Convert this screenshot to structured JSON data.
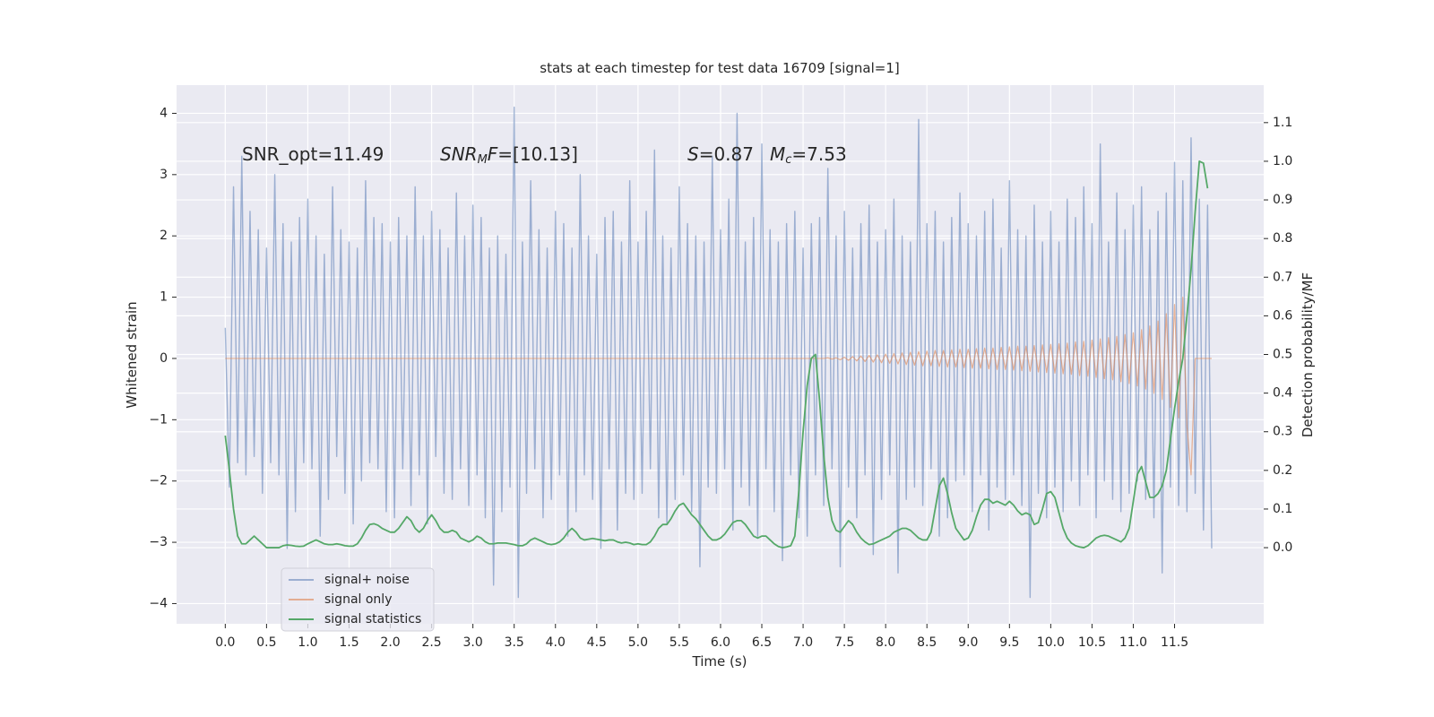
{
  "chart_data": {
    "type": "line",
    "title": "stats at each timestep for test data 16709 [signal=1]",
    "x_label": "Time (s)",
    "y_label": "Whitened strain",
    "y2_label": "Detection probability/MF",
    "annotations": [
      [
        "SNR_opt=11.49"
      ],
      [
        "SNR",
        "M",
        "F",
        "=[10.13]"
      ],
      [
        "S",
        "=0.87"
      ],
      [
        "M",
        "c",
        "=7.53"
      ]
    ],
    "xlim": [
      -0.59,
      12.58
    ],
    "ylim": [
      -4.33,
      4.46
    ],
    "y2lim": [
      -0.197,
      1.197
    ],
    "xticks": [
      {
        "value": 0,
        "label": "0.0"
      },
      0.5,
      {
        "value": 1,
        "label": "1.0"
      },
      1.5,
      {
        "value": 2,
        "label": "2.0"
      },
      2.5,
      {
        "value": 3,
        "label": "3.0"
      },
      3.5,
      {
        "value": 4,
        "label": "4.0"
      },
      4.5,
      {
        "value": 5,
        "label": "5.0"
      },
      5.5,
      {
        "value": 6,
        "label": "6.0"
      },
      6.5,
      {
        "value": 7,
        "label": "7.0"
      },
      7.5,
      {
        "value": 8,
        "label": "8.0"
      },
      8.5,
      {
        "value": 9,
        "label": "9.0"
      },
      9.5,
      {
        "value": 10,
        "label": "10.0"
      },
      10.5,
      {
        "value": 11,
        "label": "11.0"
      },
      11.5
    ],
    "yticks": [
      {
        "value": -4,
        "label": "−4"
      },
      {
        "value": -3,
        "label": "−3"
      },
      {
        "value": -2,
        "label": "−2"
      },
      {
        "value": -1,
        "label": "−1"
      },
      0,
      1,
      2,
      3,
      4
    ],
    "y2ticks": [
      {
        "value": 0,
        "label": "0.0"
      },
      0.1,
      0.2,
      0.3,
      0.4,
      0.5,
      0.6,
      0.7,
      0.8,
      0.9,
      {
        "value": 1,
        "label": "1.0"
      },
      1.1
    ],
    "grid": true,
    "legend": "lower left",
    "x": [
      0,
      0.05,
      0.1,
      0.15,
      0.2,
      0.25,
      0.3,
      0.35,
      0.4,
      0.45,
      0.5,
      0.55,
      0.6,
      0.65,
      0.7,
      0.75,
      0.8,
      0.85,
      0.9,
      0.95,
      1,
      1.05,
      1.1,
      1.15,
      1.2,
      1.25,
      1.3,
      1.35,
      1.4,
      1.45,
      1.5,
      1.55,
      1.6,
      1.65,
      1.7,
      1.75,
      1.8,
      1.85,
      1.9,
      1.95,
      2,
      2.05,
      2.1,
      2.15,
      2.2,
      2.25,
      2.3,
      2.35,
      2.4,
      2.45,
      2.5,
      2.55,
      2.6,
      2.65,
      2.7,
      2.75,
      2.8,
      2.85,
      2.9,
      2.95,
      3,
      3.05,
      3.1,
      3.15,
      3.2,
      3.25,
      3.3,
      3.35,
      3.4,
      3.45,
      3.5,
      3.55,
      3.6,
      3.65,
      3.7,
      3.75,
      3.8,
      3.85,
      3.9,
      3.95,
      4,
      4.05,
      4.1,
      4.15,
      4.2,
      4.25,
      4.3,
      4.35,
      4.4,
      4.45,
      4.5,
      4.55,
      4.6,
      4.65,
      4.7,
      4.75,
      4.8,
      4.85,
      4.9,
      4.95,
      5,
      5.05,
      5.1,
      5.15,
      5.2,
      5.25,
      5.3,
      5.35,
      5.4,
      5.45,
      5.5,
      5.55,
      5.6,
      5.65,
      5.7,
      5.75,
      5.8,
      5.85,
      5.9,
      5.95,
      6,
      6.05,
      6.1,
      6.15,
      6.2,
      6.25,
      6.3,
      6.35,
      6.4,
      6.45,
      6.5,
      6.55,
      6.6,
      6.65,
      6.7,
      6.75,
      6.8,
      6.85,
      6.9,
      6.95,
      7,
      7.05,
      7.1,
      7.15,
      7.2,
      7.25,
      7.3,
      7.35,
      7.4,
      7.45,
      7.5,
      7.55,
      7.6,
      7.65,
      7.7,
      7.75,
      7.8,
      7.85,
      7.9,
      7.95,
      8,
      8.05,
      8.1,
      8.15,
      8.2,
      8.25,
      8.3,
      8.35,
      8.4,
      8.45,
      8.5,
      8.55,
      8.6,
      8.65,
      8.7,
      8.75,
      8.8,
      8.85,
      8.9,
      8.95,
      9,
      9.05,
      9.1,
      9.15,
      9.2,
      9.25,
      9.3,
      9.35,
      9.4,
      9.45,
      9.5,
      9.55,
      9.6,
      9.65,
      9.7,
      9.75,
      9.8,
      9.85,
      9.9,
      9.95,
      10,
      10.05,
      10.1,
      10.15,
      10.2,
      10.25,
      10.3,
      10.35,
      10.4,
      10.45,
      10.5,
      10.55,
      10.6,
      10.65,
      10.7,
      10.75,
      10.8,
      10.85,
      10.9,
      10.95,
      11,
      11.05,
      11.1,
      11.15,
      11.2,
      11.25,
      11.3,
      11.35,
      11.4,
      11.45,
      11.5,
      11.55,
      11.6,
      11.65,
      11.7,
      11.75,
      11.8,
      11.85,
      11.9,
      11.95
    ],
    "series": [
      {
        "name": "signal+ noise",
        "color": "#4c72b0",
        "values": [
          0.5,
          -2.1,
          2.8,
          -1.7,
          3.3,
          -1.9,
          2.4,
          -1.6,
          2.1,
          -2.2,
          1.8,
          -1.7,
          3.0,
          -1.9,
          2.2,
          -3.1,
          1.9,
          -2.5,
          2.3,
          -1.7,
          2.6,
          -1.8,
          2.0,
          -2.9,
          1.7,
          -2.3,
          2.8,
          -1.6,
          2.1,
          -2.2,
          1.9,
          -2.7,
          1.8,
          -2.0,
          2.9,
          -1.7,
          2.3,
          -1.8,
          2.2,
          -2.5,
          1.9,
          -2.6,
          2.3,
          -1.8,
          2.0,
          -2.4,
          2.8,
          -1.9,
          2.0,
          -2.7,
          2.4,
          -1.6,
          2.1,
          -2.2,
          1.8,
          -2.3,
          2.7,
          -1.8,
          2.0,
          -2.4,
          2.5,
          -1.9,
          2.3,
          -2.6,
          1.8,
          -3.7,
          2.0,
          -2.5,
          1.7,
          -2.1,
          4.1,
          -3.9,
          1.9,
          -2.2,
          2.9,
          -1.8,
          2.1,
          -2.6,
          1.8,
          -2.3,
          2.4,
          -1.9,
          2.2,
          -2.9,
          1.8,
          -2.5,
          3.0,
          -1.9,
          2.0,
          -2.3,
          1.7,
          -3.1,
          2.3,
          -1.8,
          2.4,
          -2.8,
          1.9,
          -2.2,
          2.9,
          -2.3,
          1.9,
          -2.2,
          2.4,
          -1.8,
          3.4,
          -2.6,
          2.0,
          -2.7,
          1.8,
          -2.3,
          2.8,
          -1.9,
          2.2,
          -2.5,
          2.0,
          -3.4,
          1.9,
          -2.1,
          3.3,
          -2.2,
          2.1,
          -1.8,
          2.6,
          -2.8,
          4.0,
          -2.1,
          1.9,
          -2.4,
          2.3,
          -2.9,
          3.5,
          -1.8,
          2.1,
          -2.5,
          1.9,
          -3.3,
          2.2,
          -1.9,
          2.4,
          -2.6,
          1.8,
          -2.9,
          2.2,
          -1.9,
          2.3,
          -2.4,
          3.1,
          -1.8,
          2.0,
          -3.4,
          2.4,
          -2.1,
          1.8,
          -2.6,
          2.2,
          -1.9,
          2.5,
          -3.2,
          1.9,
          -2.3,
          2.1,
          -1.9,
          2.6,
          -3.5,
          2.0,
          -2.3,
          1.9,
          -2.1,
          3.9,
          -2.4,
          2.2,
          -1.8,
          2.4,
          -2.9,
          1.9,
          -2.6,
          2.3,
          -2.0,
          2.7,
          -1.9,
          2.2,
          -2.5,
          2.0,
          -1.9,
          2.4,
          -2.8,
          2.6,
          -2.1,
          1.8,
          -2.3,
          2.9,
          -1.9,
          2.1,
          -2.4,
          2.0,
          -3.9,
          2.5,
          -2.2,
          1.9,
          -2.6,
          2.4,
          -2.1,
          1.9,
          -2.5,
          2.6,
          -2.0,
          2.3,
          -2.4,
          2.8,
          -1.9,
          2.2,
          -2.6,
          3.5,
          -2.0,
          1.9,
          -2.3,
          2.7,
          -2.5,
          2.1,
          -2.2,
          2.5,
          -2.0,
          2.8,
          -2.3,
          2.1,
          -2.6,
          2.4,
          -3.5,
          2.7,
          -2.1,
          3.2,
          -2.4,
          2.9,
          -2.5,
          3.6,
          -2.2,
          2.6,
          -2.8,
          2.5,
          -3.1
        ]
      },
      {
        "name": "signal only",
        "color": "#dd8452",
        "values": [
          0,
          0,
          0,
          0,
          0,
          0,
          0,
          0,
          0,
          0,
          0,
          0,
          0,
          0,
          0,
          0,
          0,
          0,
          0,
          0,
          0,
          0,
          0,
          0,
          0,
          0,
          0,
          0,
          0,
          0,
          0,
          0,
          0,
          0,
          0,
          0,
          0,
          0,
          0,
          0,
          0,
          0,
          0,
          0,
          0,
          0,
          0,
          0,
          0,
          0,
          0,
          0,
          0,
          0,
          0,
          0,
          0,
          0,
          0,
          0,
          0,
          0,
          0,
          0,
          0,
          0,
          0,
          0,
          0,
          0,
          0,
          0,
          0,
          0,
          0,
          0,
          0,
          0,
          0,
          0,
          0,
          0,
          0,
          0,
          0,
          0,
          0,
          0,
          0,
          0,
          0,
          0,
          0,
          0,
          0,
          0,
          0,
          0,
          0,
          0,
          0,
          0,
          0,
          0,
          0,
          0,
          0,
          0,
          0,
          0,
          0,
          0,
          0,
          0,
          0,
          0,
          0,
          0,
          0,
          0,
          0,
          0,
          0,
          0,
          0,
          0,
          0,
          0,
          0,
          0,
          0,
          0,
          0,
          0,
          0,
          0,
          0,
          0,
          0,
          0,
          0,
          0,
          0,
          0,
          0,
          0,
          0.01,
          -0.01,
          0.01,
          -0.02,
          0.02,
          -0.03,
          0.03,
          -0.04,
          0.04,
          -0.05,
          0.05,
          -0.06,
          0.06,
          -0.07,
          0.07,
          -0.08,
          0.08,
          -0.09,
          0.09,
          -0.1,
          0.1,
          -0.11,
          0.11,
          -0.12,
          0.12,
          -0.12,
          0.13,
          -0.13,
          0.13,
          -0.14,
          0.14,
          -0.14,
          0.15,
          -0.15,
          0.15,
          -0.16,
          0.16,
          -0.16,
          0.17,
          -0.17,
          0.17,
          -0.18,
          0.18,
          -0.18,
          0.19,
          -0.19,
          0.2,
          -0.2,
          0.2,
          -0.21,
          0.21,
          -0.22,
          0.22,
          -0.23,
          0.23,
          -0.24,
          0.24,
          -0.25,
          0.25,
          -0.26,
          0.27,
          -0.28,
          0.28,
          -0.29,
          0.3,
          -0.31,
          0.32,
          -0.33,
          0.34,
          -0.35,
          0.36,
          -0.38,
          0.39,
          -0.41,
          0.42,
          -0.45,
          0.47,
          -0.5,
          0.53,
          -0.57,
          0.61,
          -0.67,
          0.73,
          -0.8,
          0.88,
          -0.97,
          1.0,
          -1.1,
          -1.9,
          0,
          0,
          0,
          0,
          0
        ]
      },
      {
        "name": "signal statistics",
        "color": "#55a868",
        "axis": "y2",
        "values": [
          0.29,
          0.2,
          0.1,
          0.03,
          0.01,
          0.01,
          0.02,
          0.03,
          0.02,
          0.01,
          0.0,
          0.0,
          0.0,
          0.0,
          0.005,
          0.007,
          0.006,
          0.004,
          0.003,
          0.004,
          0.01,
          0.015,
          0.02,
          0.015,
          0.01,
          0.008,
          0.008,
          0.01,
          0.008,
          0.005,
          0.004,
          0.004,
          0.01,
          0.025,
          0.045,
          0.06,
          0.062,
          0.058,
          0.05,
          0.045,
          0.04,
          0.04,
          0.05,
          0.065,
          0.08,
          0.07,
          0.05,
          0.04,
          0.05,
          0.07,
          0.085,
          0.07,
          0.05,
          0.04,
          0.04,
          0.045,
          0.04,
          0.025,
          0.02,
          0.015,
          0.02,
          0.03,
          0.025,
          0.015,
          0.01,
          0.01,
          0.012,
          0.012,
          0.012,
          0.01,
          0.008,
          0.005,
          0.005,
          0.01,
          0.02,
          0.025,
          0.02,
          0.015,
          0.01,
          0.008,
          0.01,
          0.015,
          0.025,
          0.04,
          0.05,
          0.04,
          0.025,
          0.02,
          0.022,
          0.024,
          0.022,
          0.02,
          0.018,
          0.02,
          0.02,
          0.015,
          0.012,
          0.014,
          0.012,
          0.008,
          0.01,
          0.008,
          0.008,
          0.015,
          0.03,
          0.05,
          0.06,
          0.06,
          0.075,
          0.095,
          0.11,
          0.115,
          0.1,
          0.085,
          0.075,
          0.06,
          0.045,
          0.03,
          0.02,
          0.02,
          0.025,
          0.035,
          0.05,
          0.065,
          0.07,
          0.07,
          0.06,
          0.045,
          0.03,
          0.025,
          0.03,
          0.03,
          0.02,
          0.01,
          0.003,
          0.0,
          0.002,
          0.005,
          0.03,
          0.15,
          0.3,
          0.42,
          0.49,
          0.5,
          0.38,
          0.24,
          0.13,
          0.07,
          0.045,
          0.04,
          0.055,
          0.07,
          0.06,
          0.04,
          0.025,
          0.015,
          0.008,
          0.01,
          0.015,
          0.02,
          0.025,
          0.03,
          0.04,
          0.045,
          0.05,
          0.05,
          0.045,
          0.035,
          0.025,
          0.02,
          0.02,
          0.04,
          0.1,
          0.16,
          0.18,
          0.14,
          0.09,
          0.05,
          0.035,
          0.02,
          0.025,
          0.045,
          0.08,
          0.11,
          0.125,
          0.125,
          0.115,
          0.12,
          0.115,
          0.11,
          0.12,
          0.11,
          0.095,
          0.085,
          0.09,
          0.085,
          0.06,
          0.065,
          0.1,
          0.14,
          0.145,
          0.13,
          0.09,
          0.05,
          0.025,
          0.012,
          0.005,
          0.002,
          0.0,
          0.005,
          0.015,
          0.025,
          0.03,
          0.032,
          0.03,
          0.025,
          0.02,
          0.015,
          0.025,
          0.05,
          0.12,
          0.19,
          0.21,
          0.17,
          0.13,
          0.13,
          0.14,
          0.16,
          0.2,
          0.28,
          0.36,
          0.43,
          0.49,
          0.6,
          0.72,
          0.87,
          1.0,
          0.995,
          0.93,
          null
        ]
      }
    ]
  }
}
